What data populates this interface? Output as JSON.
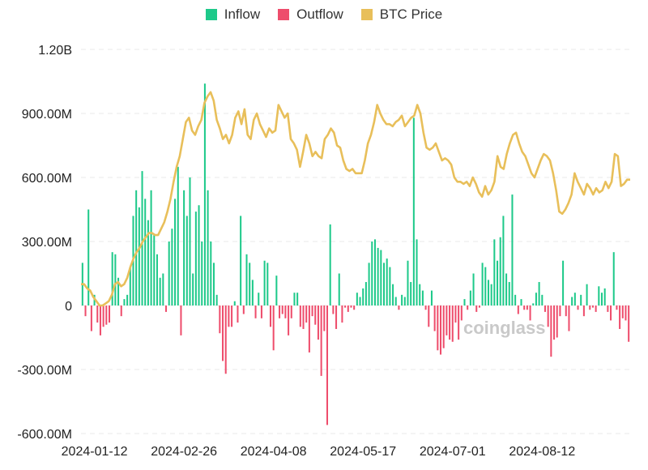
{
  "colors": {
    "inflow": "#1ec98a",
    "outflow": "#ee4d6c",
    "price": "#e8bf5a"
  },
  "legend": {
    "inflow": "Inflow",
    "outflow": "Outflow",
    "price": "BTC Price"
  },
  "watermark": "coinglass",
  "chart_data": {
    "type": "bar",
    "title": "",
    "xlabel": "",
    "ylabel": "",
    "ylim": [
      -620000000,
      1200000000
    ],
    "y_ticks": [
      1200000000,
      900000000,
      600000000,
      300000000,
      0,
      -300000000,
      -600000000
    ],
    "y_tick_labels": [
      "1.20B",
      "900.00M",
      "600.00M",
      "300.00M",
      "0",
      "-300.00M",
      "-600.00M"
    ],
    "x_tick_labels": [
      {
        "index": 4,
        "label": "2024-01-12"
      },
      {
        "index": 34,
        "label": "2024-02-26"
      },
      {
        "index": 64,
        "label": "2024-04-08"
      },
      {
        "index": 94,
        "label": "2024-05-17"
      },
      {
        "index": 124,
        "label": "2024-07-01"
      },
      {
        "index": 154,
        "label": "2024-08-12"
      }
    ],
    "series": [
      {
        "name": "Inflow/Outflow (net daily)",
        "values": [
          200,
          -50,
          450,
          -120,
          50,
          -80,
          -140,
          -100,
          -90,
          -80,
          250,
          240,
          130,
          -50,
          30,
          50,
          180,
          420,
          540,
          460,
          630,
          500,
          400,
          540,
          330,
          240,
          130,
          150,
          -30,
          300,
          360,
          500,
          650,
          -140,
          540,
          420,
          600,
          150,
          440,
          470,
          300,
          1040,
          540,
          300,
          200,
          50,
          -130,
          -260,
          -320,
          -100,
          -100,
          20,
          -80,
          420,
          -40,
          240,
          200,
          120,
          -60,
          60,
          -60,
          210,
          200,
          -100,
          -210,
          140,
          -60,
          -40,
          -60,
          -140,
          -60,
          60,
          60,
          -100,
          -110,
          -80,
          -220,
          -50,
          -90,
          -160,
          -330,
          -120,
          -560,
          380,
          -40,
          -110,
          150,
          -80,
          -10,
          -30,
          -10,
          -20,
          60,
          40,
          80,
          110,
          200,
          300,
          310,
          270,
          260,
          200,
          220,
          180,
          100,
          40,
          -20,
          50,
          40,
          210,
          110,
          880,
          310,
          100,
          70,
          -20,
          -100,
          70,
          -120,
          -210,
          -230,
          -200,
          -140,
          -160,
          -170,
          -80,
          -160,
          -70,
          30,
          -20,
          70,
          150,
          -30,
          -10,
          200,
          180,
          120,
          100,
          310,
          210,
          320,
          420,
          150,
          110,
          520,
          50,
          -40,
          30,
          -20,
          -20,
          -70,
          10,
          60,
          110,
          50,
          -30,
          -100,
          -240,
          -160,
          -150,
          -50,
          210,
          -50,
          -120,
          40,
          60,
          -20,
          50,
          -50,
          100,
          -20,
          -10,
          -30,
          90,
          60,
          80,
          -30,
          -70,
          250,
          -20,
          -110,
          -60,
          -70,
          -170
        ]
      },
      {
        "name": "BTC Price",
        "values": [
          100,
          100,
          80,
          70,
          40,
          20,
          0,
          0,
          10,
          20,
          50,
          100,
          110,
          90,
          100,
          130,
          180,
          220,
          250,
          270,
          300,
          320,
          340,
          340,
          330,
          330,
          360,
          390,
          440,
          500,
          580,
          650,
          700,
          780,
          860,
          880,
          820,
          800,
          840,
          870,
          950,
          980,
          1000,
          960,
          870,
          830,
          780,
          800,
          760,
          800,
          880,
          910,
          850,
          920,
          800,
          780,
          870,
          900,
          850,
          820,
          790,
          830,
          810,
          820,
          940,
          910,
          880,
          900,
          780,
          760,
          730,
          650,
          720,
          800,
          760,
          700,
          720,
          700,
          690,
          780,
          800,
          830,
          810,
          750,
          740,
          680,
          640,
          630,
          640,
          620,
          620,
          620,
          680,
          760,
          800,
          860,
          940,
          900,
          870,
          850,
          850,
          840,
          860,
          870,
          890,
          840,
          860,
          880,
          890,
          940,
          900,
          810,
          740,
          730,
          740,
          760,
          720,
          680,
          690,
          680,
          660,
          600,
          580,
          580,
          570,
          580,
          560,
          600,
          570,
          530,
          510,
          560,
          520,
          540,
          580,
          700,
          650,
          640,
          710,
          760,
          800,
          810,
          760,
          720,
          700,
          660,
          620,
          600,
          640,
          680,
          710,
          700,
          680,
          620,
          540,
          440,
          430,
          450,
          480,
          520,
          620,
          580,
          550,
          520,
          570,
          550,
          520,
          550,
          530,
          540,
          580,
          550,
          580,
          710,
          700,
          560,
          570,
          590,
          590
        ]
      }
    ]
  }
}
